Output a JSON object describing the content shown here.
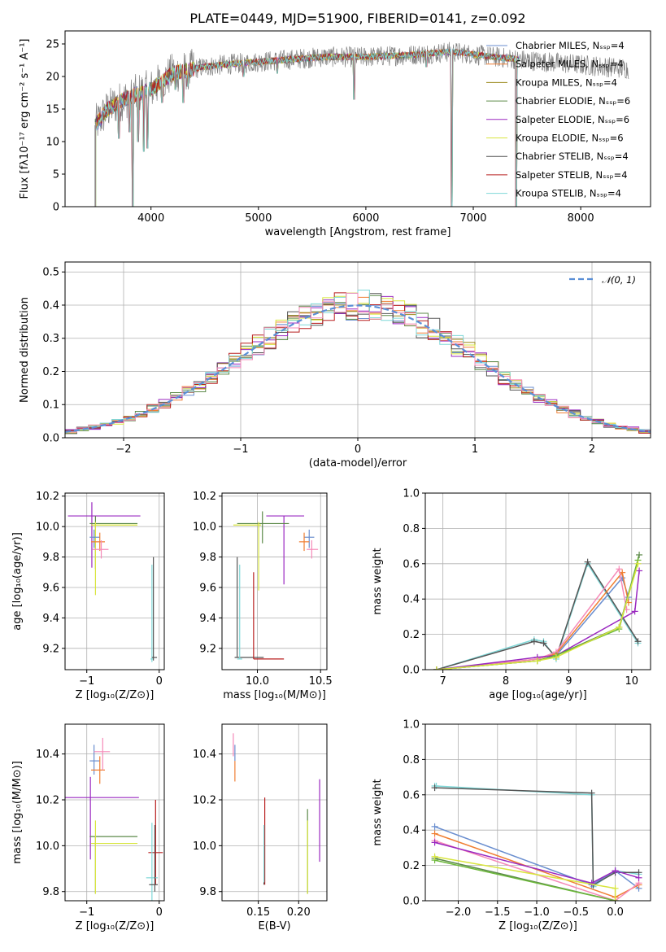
{
  "figure_title": "PLATE=0449, MJD=51900, FIBERID=0141, z=0.092",
  "colors": {
    "Chabrier MILES": "#6a8ecf",
    "Salpeter MILES": "#f07f33",
    "Kroupa MILES": "#9b8a1e",
    "Chabrier ELODIE": "#5d8a4a",
    "Salpeter ELODIE": "#9a28c0",
    "Kroupa ELODIE": "#d8e53e",
    "Chabrier STELIB": "#555555",
    "Salpeter STELIB": "#b81f1f",
    "Kroupa STELIB": "#7fd8d8",
    "pink": "#f58ab8",
    "green": "#6cb83a",
    "normal": "#5a8fd6"
  },
  "chart_data": [
    {
      "id": "spectrum",
      "type": "line",
      "title": "PLATE=0449, MJD=51900, FIBERID=0141, z=0.092",
      "xlabel": "wavelength [Angstrom, rest frame]",
      "ylabel": "Flux [fλ10⁻¹⁷ erg cm⁻² s⁻¹ A⁻¹]",
      "xlim": [
        3200,
        8650
      ],
      "ylim": [
        0,
        27
      ],
      "xticks": [
        4000,
        5000,
        6000,
        7000,
        8000
      ],
      "yticks": [
        0,
        5,
        10,
        15,
        20,
        25
      ],
      "grid": false,
      "legend_placement": "upper right",
      "legend": [
        "Chabrier MILES, Nₛₛₚ=4",
        "Salpeter MILES, Nₛₛₚ=4",
        "Kroupa MILES, Nₛₛₚ=4",
        "Chabrier ELODIE, Nₛₛₚ=6",
        "Salpeter ELODIE, Nₛₛₚ=6",
        "Kroupa ELODIE, Nₛₛₚ=6",
        "Chabrier STELIB, Nₛₛₚ=4",
        "Salpeter STELIB, Nₛₛₚ=4",
        "Kroupa STELIB, Nₛₛₚ=4"
      ],
      "continuum": [
        [
          3480,
          12.5
        ],
        [
          3600,
          15.0
        ],
        [
          3750,
          16.5
        ],
        [
          3900,
          17.5
        ],
        [
          4000,
          18.0
        ],
        [
          4200,
          20.5
        ],
        [
          4500,
          21.5
        ],
        [
          4800,
          22.0
        ],
        [
          5200,
          22.5
        ],
        [
          5600,
          23.0
        ],
        [
          6000,
          23.0
        ],
        [
          6400,
          23.3
        ],
        [
          6800,
          23.8
        ],
        [
          7200,
          23.0
        ],
        [
          7500,
          22.5
        ],
        [
          8000,
          21.8
        ],
        [
          8450,
          21.2
        ]
      ],
      "model_range": [
        3480,
        7430
      ],
      "data_range": [
        3480,
        8450
      ],
      "absorption": [
        [
          3700,
          10.5
        ],
        [
          3800,
          11.5
        ],
        [
          3830,
          0.0
        ],
        [
          3880,
          10.0
        ],
        [
          3933,
          8.5
        ],
        [
          3968,
          9.0
        ],
        [
          4102,
          16.0
        ],
        [
          4227,
          18.0
        ],
        [
          4300,
          16.0
        ],
        [
          4340,
          18.5
        ],
        [
          4861,
          20.0
        ],
        [
          5175,
          20.5
        ],
        [
          5890,
          16.5
        ],
        [
          6563,
          21.5
        ],
        [
          6800,
          0.0
        ],
        [
          7400,
          0.0
        ]
      ]
    },
    {
      "id": "residual-histogram",
      "type": "histogram",
      "xlabel": "(data-model)/error",
      "ylabel": "Normed distribution",
      "xlim": [
        -2.5,
        2.5
      ],
      "ylim": [
        0,
        0.53
      ],
      "xticks": [
        -2,
        -1,
        0,
        1,
        2
      ],
      "yticks": [
        0.0,
        0.1,
        0.2,
        0.3,
        0.4,
        0.5
      ],
      "grid": true,
      "legend_placement": "upper right",
      "legend": [
        "𝒩(0, 1)"
      ],
      "bin_width": 0.1,
      "series_colors": [
        "Chabrier MILES",
        "Salpeter MILES",
        "Kroupa MILES",
        "Chabrier ELODIE",
        "Salpeter ELODIE",
        "Kroupa ELODIE",
        "Chabrier STELIB",
        "Salpeter STELIB",
        "Kroupa STELIB",
        "pink"
      ]
    },
    {
      "id": "age-vs-z",
      "type": "errorbar",
      "xlabel": "Z [log₁₀(Z/Z⊙)]",
      "ylabel": "age  [log₁₀(age/yr)]",
      "xlim": [
        -1.3,
        0.07
      ],
      "ylim": [
        9.06,
        10.22
      ],
      "xticks": [
        -1,
        0
      ],
      "yticks": [
        9.2,
        9.4,
        9.6,
        9.8,
        10.0,
        10.2
      ],
      "grid": true,
      "points": [
        {
          "c": "Salpeter ELODIE",
          "x": -0.93,
          "xe": [
            0.33,
            0.67
          ],
          "y": 10.07,
          "ye": [
            0.34,
            0.09
          ]
        },
        {
          "c": "Chabrier ELODIE",
          "x": -0.88,
          "xe": [
            0.08,
            0.58
          ],
          "y": 10.02,
          "ye": [
            0.3,
            0.05
          ]
        },
        {
          "c": "Kroupa ELODIE",
          "x": -0.88,
          "xe": [
            0.06,
            0.58
          ],
          "y": 10.01,
          "ye": [
            0.46,
            0.02
          ]
        },
        {
          "c": "Chabrier MILES",
          "x": -0.9,
          "xe": [
            0.06,
            0.08
          ],
          "y": 9.93,
          "ye": [
            0.07,
            0.05
          ]
        },
        {
          "c": "Salpeter MILES",
          "x": -0.82,
          "xe": [
            0.12,
            0.07
          ],
          "y": 9.9,
          "ye": [
            0.06,
            0.06
          ]
        },
        {
          "c": "pink",
          "x": -0.8,
          "xe": [
            0.12,
            0.1
          ],
          "y": 9.85,
          "ye": [
            0.06,
            0.06
          ]
        },
        {
          "c": "Kroupa STELIB",
          "x": -0.1,
          "xe": [
            0.02,
            0.02
          ],
          "y": 9.13,
          "ye": [
            0.02,
            0.62
          ]
        },
        {
          "c": "Chabrier STELIB",
          "x": -0.08,
          "xe": [
            0.02,
            0.05
          ],
          "y": 9.14,
          "ye": [
            0.02,
            0.66
          ]
        }
      ]
    },
    {
      "id": "age-vs-mass",
      "type": "errorbar",
      "xlabel": "mass [log₁₀(M/M⊙)]",
      "ylabel": "",
      "xlim": [
        9.72,
        10.55
      ],
      "ylim": [
        9.06,
        10.22
      ],
      "xticks": [
        10.0,
        10.5
      ],
      "yticks": [
        9.2,
        9.4,
        9.6,
        9.8,
        10.0,
        10.2
      ],
      "grid": true,
      "points": [
        {
          "c": "Salpeter ELODIE",
          "x": 10.21,
          "xe": [
            0.14,
            0.16
          ],
          "y": 10.07,
          "ye": [
            0.45,
            0.0
          ]
        },
        {
          "c": "Chabrier ELODIE",
          "x": 10.04,
          "xe": [
            0.2,
            0.21
          ],
          "y": 10.02,
          "ye": [
            0.13,
            0.08
          ]
        },
        {
          "c": "Kroupa ELODIE",
          "x": 10.01,
          "xe": [
            0.2,
            0.02
          ],
          "y": 10.01,
          "ye": [
            0.43,
            0.02
          ]
        },
        {
          "c": "Chabrier MILES",
          "x": 10.41,
          "xe": [
            0.04,
            0.04
          ],
          "y": 9.93,
          "ye": [
            0.07,
            0.05
          ]
        },
        {
          "c": "Salpeter MILES",
          "x": 10.37,
          "xe": [
            0.04,
            0.04
          ],
          "y": 9.9,
          "ye": [
            0.06,
            0.06
          ]
        },
        {
          "c": "pink",
          "x": 10.43,
          "xe": [
            0.04,
            0.05
          ],
          "y": 9.85,
          "ye": [
            0.06,
            0.06
          ]
        },
        {
          "c": "Chabrier STELIB",
          "x": 9.84,
          "xe": [
            0.02,
            0.21
          ],
          "y": 9.14,
          "ye": [
            0.0,
            0.66
          ]
        },
        {
          "c": "Kroupa STELIB",
          "x": 9.86,
          "xe": [
            0.02,
            0.02
          ],
          "y": 9.13,
          "ye": [
            0.0,
            0.62
          ]
        },
        {
          "c": "Salpeter STELIB",
          "x": 9.97,
          "xe": [
            0.0,
            0.24
          ],
          "y": 9.13,
          "ye": [
            0.0,
            0.57
          ]
        }
      ]
    },
    {
      "id": "mass-weight-vs-age",
      "type": "line",
      "xlabel": "age  [log₁₀(age/yr)]",
      "ylabel": "mass weight",
      "xlim": [
        6.72,
        10.3
      ],
      "ylim": [
        0,
        1.0
      ],
      "xticks": [
        7,
        8,
        9,
        10
      ],
      "yticks": [
        0.0,
        0.2,
        0.4,
        0.6,
        0.8,
        1.0
      ],
      "grid": true,
      "series": [
        {
          "c": "Kroupa STELIB",
          "x": [
            6.9,
            8.45,
            8.6,
            8.8,
            9.3,
            10.1
          ],
          "y": [
            0.0,
            0.17,
            0.16,
            0.06,
            0.6,
            0.15
          ]
        },
        {
          "c": "Chabrier STELIB",
          "x": [
            6.9,
            8.45,
            8.6,
            8.8,
            9.3,
            10.1
          ],
          "y": [
            0.0,
            0.16,
            0.15,
            0.07,
            0.61,
            0.16
          ]
        },
        {
          "c": "Chabrier MILES",
          "x": [
            6.9,
            8.5,
            8.8,
            9.85,
            9.95
          ],
          "y": [
            0.0,
            0.05,
            0.08,
            0.52,
            0.41
          ]
        },
        {
          "c": "Salpeter MILES",
          "x": [
            6.9,
            8.5,
            8.8,
            9.85,
            9.95
          ],
          "y": [
            0.0,
            0.06,
            0.09,
            0.55,
            0.38
          ]
        },
        {
          "c": "pink",
          "x": [
            6.9,
            8.5,
            8.8,
            9.8,
            9.92
          ],
          "y": [
            0.0,
            0.06,
            0.1,
            0.57,
            0.34
          ]
        },
        {
          "c": "Salpeter ELODIE",
          "x": [
            6.9,
            8.5,
            8.8,
            10.05,
            10.12
          ],
          "y": [
            0.0,
            0.07,
            0.08,
            0.33,
            0.56
          ]
        },
        {
          "c": "Chabrier ELODIE",
          "x": [
            6.9,
            8.5,
            8.8,
            9.8,
            10.12
          ],
          "y": [
            0.0,
            0.05,
            0.08,
            0.24,
            0.65
          ]
        },
        {
          "c": "green",
          "x": [
            6.9,
            8.5,
            8.8,
            9.8,
            10.1
          ],
          "y": [
            0.0,
            0.05,
            0.08,
            0.23,
            0.62
          ]
        },
        {
          "c": "Kroupa ELODIE",
          "x": [
            6.9,
            8.5,
            8.8,
            9.8,
            10.1
          ],
          "y": [
            0.0,
            0.05,
            0.07,
            0.24,
            0.6
          ]
        }
      ]
    },
    {
      "id": "mass-vs-z",
      "type": "errorbar",
      "xlabel": "Z [log₁₀(Z/Z⊙)]",
      "ylabel": "mass [log₁₀(M/M⊙)]",
      "xlim": [
        -1.3,
        0.07
      ],
      "ylim": [
        9.76,
        10.53
      ],
      "xticks": [
        -1,
        0
      ],
      "yticks": [
        9.8,
        10.0,
        10.2,
        10.4
      ],
      "grid": true,
      "points": [
        {
          "c": "Salpeter ELODIE",
          "x": -0.95,
          "xe": [
            0.35,
            0.67
          ],
          "y": 10.21,
          "ye": [
            0.27,
            0.09
          ]
        },
        {
          "c": "Chabrier ELODIE",
          "x": -0.88,
          "xe": [
            0.08,
            0.58
          ],
          "y": 10.04,
          "ye": [
            0.25,
            0.0
          ]
        },
        {
          "c": "Kroupa ELODIE",
          "x": -0.88,
          "xe": [
            0.06,
            0.58
          ],
          "y": 10.01,
          "ye": [
            0.22,
            0.1
          ]
        },
        {
          "c": "Chabrier MILES",
          "x": -0.9,
          "xe": [
            0.06,
            0.08
          ],
          "y": 10.37,
          "ye": [
            0.06,
            0.07
          ]
        },
        {
          "c": "Salpeter MILES",
          "x": -0.82,
          "xe": [
            0.12,
            0.07
          ],
          "y": 10.33,
          "ye": [
            0.06,
            0.06
          ]
        },
        {
          "c": "pink",
          "x": -0.78,
          "xe": [
            0.12,
            0.1
          ],
          "y": 10.41,
          "ye": [
            0.08,
            0.06
          ]
        },
        {
          "c": "Salpeter STELIB",
          "x": -0.05,
          "xe": [
            0.1,
            0.1
          ],
          "y": 9.97,
          "ye": [
            0.14,
            0.23
          ]
        },
        {
          "c": "Kroupa STELIB",
          "x": -0.1,
          "xe": [
            0.08,
            0.08
          ],
          "y": 9.86,
          "ye": [
            0.1,
            0.24
          ]
        },
        {
          "c": "Chabrier STELIB",
          "x": -0.06,
          "xe": [
            0.08,
            0.04
          ],
          "y": 9.83,
          "ye": [
            0.03,
            0.26
          ]
        }
      ]
    },
    {
      "id": "mass-vs-ebv",
      "type": "errorbar",
      "xlabel": "E(B-V)",
      "ylabel": "",
      "xlim": [
        0.105,
        0.235
      ],
      "ylim": [
        9.76,
        10.53
      ],
      "xticks": [
        0.15,
        0.2
      ],
      "yticks": [
        9.8,
        10.0,
        10.2,
        10.4
      ],
      "grid": true,
      "points": [
        {
          "c": "pink",
          "x": 0.119,
          "xe": [
            0.0,
            0.0
          ],
          "y": 10.41,
          "ye": [
            0.02,
            0.08
          ]
        },
        {
          "c": "Salpeter MILES",
          "x": 0.121,
          "xe": [
            0.0,
            0.0
          ],
          "y": 10.33,
          "ye": [
            0.05,
            0.04
          ]
        },
        {
          "c": "Chabrier MILES",
          "x": 0.121,
          "xe": [
            0.0,
            0.0
          ],
          "y": 10.37,
          "ye": [
            0.0,
            0.07
          ]
        },
        {
          "c": "Salpeter STELIB",
          "x": 0.158,
          "xe": [
            0.0,
            0.0
          ],
          "y": 10.0,
          "ye": [
            0.17,
            0.21
          ]
        },
        {
          "c": "Chabrier STELIB",
          "x": 0.157,
          "xe": [
            0.0,
            0.0
          ],
          "y": 9.9,
          "ye": [
            0.07,
            0.1
          ]
        },
        {
          "c": "Kroupa STELIB",
          "x": 0.157,
          "xe": [
            0.0,
            0.0
          ],
          "y": 9.95,
          "ye": [
            0.11,
            0.14
          ]
        },
        {
          "c": "Chabrier ELODIE",
          "x": 0.211,
          "xe": [
            0.0,
            0.0
          ],
          "y": 9.95,
          "ye": [
            0.16,
            0.21
          ]
        },
        {
          "c": "Kroupa ELODIE",
          "x": 0.211,
          "xe": [
            0.0,
            0.0
          ],
          "y": 9.95,
          "ye": [
            0.16,
            0.16
          ]
        },
        {
          "c": "Salpeter ELODIE",
          "x": 0.226,
          "xe": [
            0.0,
            0.0
          ],
          "y": 10.11,
          "ye": [
            0.18,
            0.18
          ]
        }
      ]
    },
    {
      "id": "mass-weight-vs-z",
      "type": "line",
      "xlabel": "Z [log₁₀(Z/Z⊙)]",
      "ylabel": "mass weight",
      "xlim": [
        -2.42,
        0.45
      ],
      "ylim": [
        0,
        1.0
      ],
      "xticks": [
        -2.0,
        -1.5,
        -1.0,
        -0.5,
        0.0
      ],
      "yticks": [
        0.0,
        0.2,
        0.4,
        0.6,
        0.8,
        1.0
      ],
      "grid": true,
      "series": [
        {
          "c": "Kroupa STELIB",
          "x": [
            -2.3,
            -2.28,
            -0.3,
            -0.28,
            0.0,
            0.3
          ],
          "y": [
            0.65,
            0.65,
            0.6,
            0.08,
            0.17,
            0.15
          ]
        },
        {
          "c": "Chabrier STELIB",
          "x": [
            -2.3,
            -0.3,
            -0.28,
            0.0,
            0.3
          ],
          "y": [
            0.64,
            0.61,
            0.09,
            0.16,
            0.16
          ]
        },
        {
          "c": "Chabrier MILES",
          "x": [
            -2.3,
            -0.3,
            0.0,
            0.3
          ],
          "y": [
            0.42,
            0.09,
            0.17,
            0.07
          ]
        },
        {
          "c": "Salpeter MILES",
          "x": [
            -2.3,
            0.0,
            0.3
          ],
          "y": [
            0.38,
            0.02,
            0.09
          ]
        },
        {
          "c": "pink",
          "x": [
            -2.3,
            0.0,
            0.3
          ],
          "y": [
            0.34,
            0.0,
            0.1
          ]
        },
        {
          "c": "Salpeter ELODIE",
          "x": [
            -2.3,
            -0.3,
            0.0,
            0.3
          ],
          "y": [
            0.33,
            0.1,
            0.17,
            0.13
          ]
        },
        {
          "c": "Chabrier ELODIE",
          "x": [
            -2.3,
            0.0
          ],
          "y": [
            0.24,
            0.0
          ]
        },
        {
          "c": "green",
          "x": [
            -2.3,
            0.0
          ],
          "y": [
            0.23,
            0.0
          ]
        },
        {
          "c": "Kroupa ELODIE",
          "x": [
            -2.3,
            0.0,
            0.0
          ],
          "y": [
            0.25,
            0.07,
            0.0
          ]
        }
      ]
    }
  ]
}
